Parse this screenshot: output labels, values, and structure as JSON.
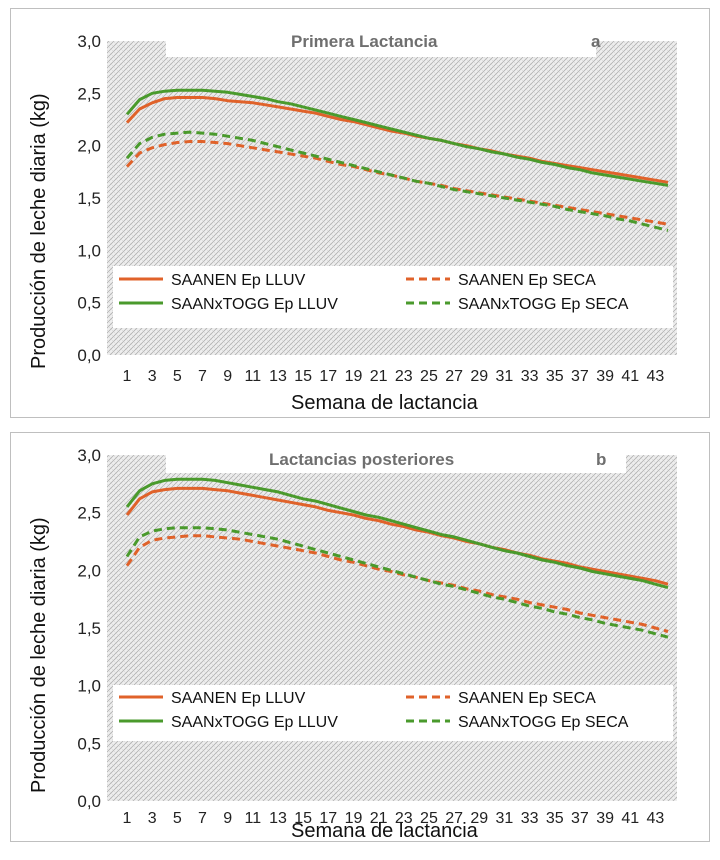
{
  "colors": {
    "saanen": "#e0622a",
    "saanxtogg": "#4a9a2c",
    "hatch": "#9a9a9a"
  },
  "chart_data": [
    {
      "type": "line",
      "title": "Primera Lactancia",
      "panel_label": "a",
      "xlabel": "Semana de lactancia",
      "ylabel": "Producción de leche diaria (kg)",
      "ylim": [
        0,
        3
      ],
      "yticks": [
        "0,0",
        "0,5",
        "1,0",
        "1,5",
        "2,0",
        "2,5",
        "3,0"
      ],
      "x": [
        1,
        2,
        3,
        4,
        5,
        6,
        7,
        8,
        9,
        10,
        11,
        12,
        13,
        14,
        15,
        16,
        17,
        18,
        19,
        20,
        21,
        22,
        23,
        24,
        25,
        26,
        27,
        28,
        29,
        30,
        31,
        32,
        33,
        34,
        35,
        36,
        37,
        38,
        39,
        40,
        41,
        42,
        43,
        44
      ],
      "xtick_labels": [
        "1",
        "3",
        "5",
        "7",
        "9",
        "11",
        "13",
        "15",
        "17",
        "19",
        "21",
        "23",
        "25",
        "27",
        "29",
        "31",
        "33",
        "35",
        "37",
        "39",
        "41",
        "43"
      ],
      "legend": "bottom-left",
      "grid": false,
      "series": [
        {
          "name": "SAANEN Ep  LLUV",
          "color_key": "saanen",
          "dash": false,
          "values": [
            2.22,
            2.35,
            2.41,
            2.45,
            2.46,
            2.46,
            2.46,
            2.45,
            2.43,
            2.42,
            2.41,
            2.39,
            2.37,
            2.35,
            2.33,
            2.31,
            2.28,
            2.25,
            2.23,
            2.2,
            2.17,
            2.14,
            2.12,
            2.09,
            2.07,
            2.05,
            2.02,
            2.0,
            1.97,
            1.95,
            1.92,
            1.9,
            1.88,
            1.85,
            1.83,
            1.81,
            1.79,
            1.77,
            1.75,
            1.73,
            1.71,
            1.69,
            1.67,
            1.65
          ]
        },
        {
          "name": "SAANEN Ep SECA",
          "color_key": "saanen",
          "dash": true,
          "values": [
            1.8,
            1.93,
            1.98,
            2.01,
            2.03,
            2.04,
            2.04,
            2.03,
            2.02,
            2.0,
            1.98,
            1.96,
            1.94,
            1.92,
            1.9,
            1.88,
            1.85,
            1.82,
            1.8,
            1.77,
            1.74,
            1.72,
            1.69,
            1.66,
            1.64,
            1.62,
            1.59,
            1.57,
            1.55,
            1.53,
            1.51,
            1.49,
            1.47,
            1.45,
            1.43,
            1.41,
            1.39,
            1.37,
            1.35,
            1.33,
            1.31,
            1.29,
            1.27,
            1.25
          ]
        },
        {
          "name": "SAANxTOGG Ep  LLUV",
          "color_key": "saanxtogg",
          "dash": false,
          "values": [
            2.3,
            2.44,
            2.5,
            2.52,
            2.53,
            2.53,
            2.53,
            2.52,
            2.51,
            2.49,
            2.47,
            2.45,
            2.42,
            2.4,
            2.37,
            2.34,
            2.31,
            2.28,
            2.25,
            2.22,
            2.19,
            2.16,
            2.13,
            2.1,
            2.07,
            2.05,
            2.02,
            1.99,
            1.97,
            1.94,
            1.92,
            1.89,
            1.87,
            1.84,
            1.82,
            1.79,
            1.77,
            1.74,
            1.72,
            1.7,
            1.68,
            1.66,
            1.64,
            1.62
          ]
        },
        {
          "name": "SAANxTOGG Ep SECA",
          "color_key": "saanxtogg",
          "dash": true,
          "values": [
            1.88,
            2.02,
            2.08,
            2.11,
            2.12,
            2.13,
            2.12,
            2.11,
            2.09,
            2.07,
            2.05,
            2.02,
            1.99,
            1.96,
            1.93,
            1.9,
            1.87,
            1.84,
            1.81,
            1.78,
            1.75,
            1.72,
            1.69,
            1.66,
            1.64,
            1.61,
            1.58,
            1.56,
            1.54,
            1.52,
            1.5,
            1.48,
            1.46,
            1.44,
            1.42,
            1.39,
            1.37,
            1.35,
            1.33,
            1.3,
            1.28,
            1.25,
            1.22,
            1.19
          ]
        }
      ]
    },
    {
      "type": "line",
      "title": "Lactancias posteriores",
      "panel_label": "b",
      "xlabel": "Semana de lactancia",
      "ylabel": "Producción de leche diaria (kg)",
      "ylim": [
        0,
        3
      ],
      "yticks": [
        "0,0",
        "0,5",
        "1,0",
        "1,5",
        "2,0",
        "2,5",
        "3,0"
      ],
      "x": [
        1,
        2,
        3,
        4,
        5,
        6,
        7,
        8,
        9,
        10,
        11,
        12,
        13,
        14,
        15,
        16,
        17,
        18,
        19,
        20,
        21,
        22,
        23,
        24,
        25,
        26,
        27,
        28,
        29,
        30,
        31,
        32,
        33,
        34,
        35,
        36,
        37,
        38,
        39,
        40,
        41,
        42,
        43,
        44
      ],
      "xtick_labels": [
        "1",
        "3",
        "5",
        "7",
        "9",
        "11",
        "13",
        "15",
        "17",
        "19",
        "21",
        "23",
        "25",
        "27",
        "29",
        "31",
        "33",
        "35",
        "37",
        "39",
        "41",
        "43"
      ],
      "legend": "bottom-left",
      "grid": false,
      "series": [
        {
          "name": "SAANEN Ep  LLUV",
          "color_key": "saanen",
          "dash": false,
          "values": [
            2.48,
            2.62,
            2.68,
            2.7,
            2.71,
            2.71,
            2.71,
            2.7,
            2.69,
            2.67,
            2.65,
            2.63,
            2.61,
            2.59,
            2.57,
            2.55,
            2.52,
            2.5,
            2.48,
            2.45,
            2.43,
            2.4,
            2.38,
            2.35,
            2.33,
            2.3,
            2.28,
            2.25,
            2.23,
            2.2,
            2.18,
            2.15,
            2.13,
            2.1,
            2.08,
            2.06,
            2.03,
            2.01,
            1.99,
            1.97,
            1.95,
            1.93,
            1.91,
            1.88
          ]
        },
        {
          "name": "SAANEN Ep SECA",
          "color_key": "saanen",
          "dash": true,
          "values": [
            2.04,
            2.2,
            2.26,
            2.28,
            2.29,
            2.3,
            2.3,
            2.29,
            2.28,
            2.27,
            2.25,
            2.23,
            2.21,
            2.19,
            2.17,
            2.15,
            2.12,
            2.09,
            2.07,
            2.04,
            2.01,
            1.99,
            1.96,
            1.94,
            1.91,
            1.89,
            1.87,
            1.84,
            1.82,
            1.79,
            1.77,
            1.75,
            1.72,
            1.7,
            1.68,
            1.66,
            1.63,
            1.61,
            1.59,
            1.57,
            1.55,
            1.53,
            1.5,
            1.47
          ]
        },
        {
          "name": "SAANxTOGG Ep  LLUV",
          "color_key": "saanxtogg",
          "dash": false,
          "values": [
            2.55,
            2.69,
            2.75,
            2.78,
            2.79,
            2.79,
            2.79,
            2.78,
            2.76,
            2.74,
            2.72,
            2.7,
            2.68,
            2.65,
            2.62,
            2.6,
            2.57,
            2.54,
            2.51,
            2.48,
            2.46,
            2.43,
            2.4,
            2.37,
            2.34,
            2.31,
            2.29,
            2.26,
            2.23,
            2.2,
            2.17,
            2.15,
            2.12,
            2.09,
            2.07,
            2.04,
            2.02,
            1.99,
            1.97,
            1.95,
            1.93,
            1.91,
            1.88,
            1.85
          ]
        },
        {
          "name": "SAANxTOGG Ep SECA",
          "color_key": "saanxtogg",
          "dash": true,
          "values": [
            2.12,
            2.29,
            2.34,
            2.36,
            2.37,
            2.37,
            2.37,
            2.36,
            2.35,
            2.33,
            2.31,
            2.29,
            2.27,
            2.24,
            2.21,
            2.18,
            2.15,
            2.12,
            2.09,
            2.06,
            2.03,
            2.0,
            1.97,
            1.94,
            1.91,
            1.88,
            1.86,
            1.83,
            1.8,
            1.77,
            1.75,
            1.72,
            1.69,
            1.67,
            1.64,
            1.62,
            1.59,
            1.57,
            1.54,
            1.52,
            1.5,
            1.48,
            1.45,
            1.42
          ]
        }
      ]
    }
  ]
}
